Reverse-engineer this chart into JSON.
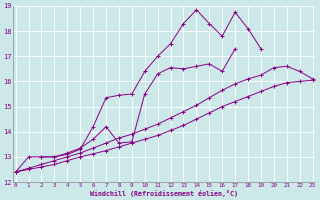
{
  "xlabel": "Windchill (Refroidissement éolien,°C)",
  "background_color": "#cce8e8",
  "line_color": "#880088",
  "grid_color": "#ffffff",
  "xmin": 0,
  "xmax": 23,
  "ymin": 12,
  "ymax": 19,
  "yticks": [
    12,
    13,
    14,
    15,
    16,
    17,
    18,
    19
  ],
  "xticks": [
    0,
    1,
    2,
    3,
    4,
    5,
    6,
    7,
    8,
    9,
    10,
    11,
    12,
    13,
    14,
    15,
    16,
    17,
    18,
    19,
    20,
    21,
    22,
    23
  ],
  "series": [
    {
      "x": [
        0,
        1,
        2,
        3,
        4,
        5,
        6,
        7,
        8,
        9,
        10,
        11,
        12,
        13,
        14,
        15,
        16,
        17,
        18,
        19
      ],
      "y": [
        12.4,
        13.0,
        13.0,
        13.0,
        13.1,
        13.3,
        14.2,
        15.35,
        15.45,
        15.5,
        16.4,
        17.0,
        17.5,
        18.3,
        18.85,
        18.3,
        17.8,
        18.75,
        18.1,
        17.3
      ]
    },
    {
      "x": [
        0,
        1,
        2,
        3,
        4,
        5,
        6,
        7,
        8,
        9,
        10,
        11,
        12,
        13,
        14,
        15,
        16,
        17,
        18,
        19,
        20,
        21,
        22,
        23
      ],
      "y": [
        12.4,
        12.55,
        12.7,
        12.85,
        13.0,
        13.15,
        13.35,
        13.55,
        13.75,
        13.9,
        14.1,
        14.3,
        14.55,
        14.8,
        15.05,
        15.35,
        15.65,
        15.9,
        16.1,
        16.25,
        16.55,
        16.6,
        16.4,
        16.1
      ]
    },
    {
      "x": [
        0,
        1,
        2,
        3,
        4,
        5,
        6,
        7,
        8,
        9,
        10,
        11,
        12,
        13,
        14,
        15,
        16,
        17,
        18,
        19,
        20,
        21,
        22,
        23
      ],
      "y": [
        12.4,
        12.5,
        12.6,
        12.7,
        12.85,
        13.0,
        13.12,
        13.25,
        13.4,
        13.55,
        13.7,
        13.85,
        14.05,
        14.25,
        14.5,
        14.75,
        15.0,
        15.2,
        15.4,
        15.6,
        15.8,
        15.95,
        16.0,
        16.05
      ]
    },
    {
      "x": [
        2,
        3,
        4,
        5,
        6,
        7,
        8,
        9,
        10,
        11,
        12,
        13,
        14,
        15,
        16,
        17
      ],
      "y": [
        13.0,
        13.0,
        13.15,
        13.35,
        13.7,
        14.2,
        13.55,
        13.6,
        15.5,
        16.3,
        16.55,
        16.5,
        16.6,
        16.7,
        16.4,
        17.3
      ]
    }
  ]
}
